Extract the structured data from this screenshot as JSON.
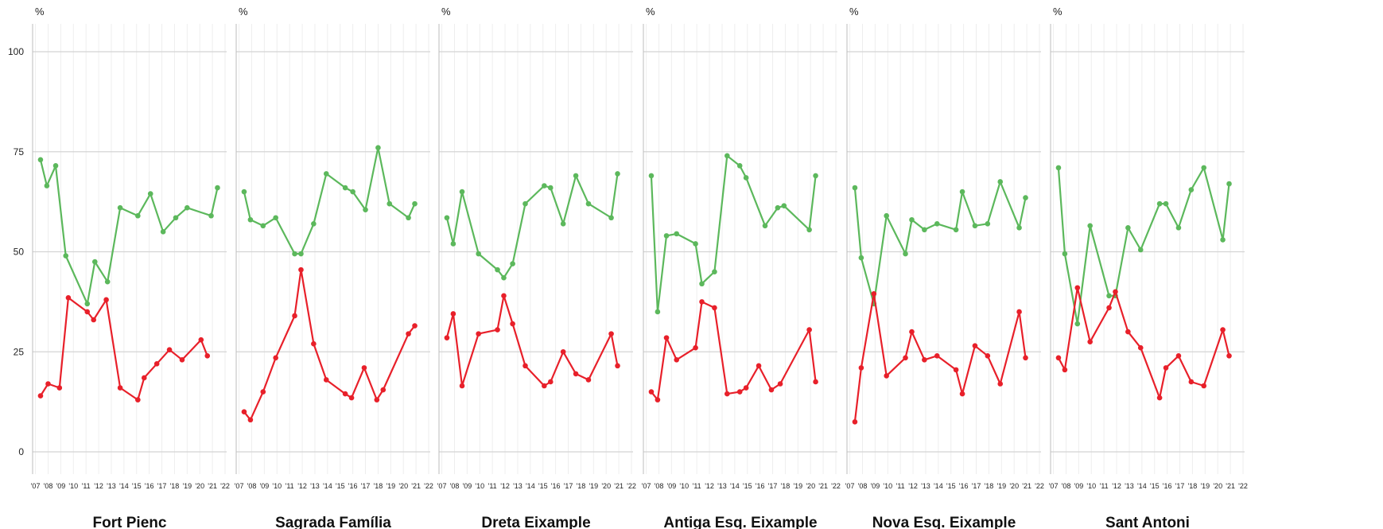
{
  "colors": {
    "green": "#5cb85c",
    "red": "#e8202a",
    "grid_major": "#d4d4d4",
    "grid_minor": "#eeeeee",
    "panel_border": "#bdbdbd"
  },
  "chart_data": {
    "type": "line",
    "y_unit_label": "%",
    "ylim": [
      -5,
      105
    ],
    "yticks": [
      0,
      25,
      50,
      75,
      100
    ],
    "x_tick_labels": [
      "'07",
      "'08",
      "'09",
      "'10",
      "'11",
      "'12",
      "'13",
      "'14",
      "'15",
      "'16",
      "'17",
      "'18",
      "'19",
      "'20",
      "'21",
      "'22"
    ],
    "x_range": [
      2006.9,
      2022.0
    ],
    "grid": true,
    "panels": [
      {
        "title": "Fort Pienc",
        "series": [
          {
            "color": "green",
            "x": [
              2007.4,
              2007.9,
              2008.6,
              2009.4,
              2011.1,
              2011.7,
              2012.7,
              2013.7,
              2015.1,
              2016.1,
              2017.1,
              2018.1,
              2019.0,
              2020.9,
              2021.4
            ],
            "y": [
              73,
              66.5,
              71.5,
              49,
              37,
              47.5,
              42.5,
              61,
              59,
              64.5,
              55,
              58.5,
              61,
              59,
              66
            ]
          },
          {
            "color": "red",
            "x": [
              2007.4,
              2008.0,
              2008.9,
              2009.6,
              2011.1,
              2011.6,
              2012.6,
              2013.7,
              2015.1,
              2015.6,
              2016.6,
              2017.6,
              2018.6,
              2020.1,
              2020.6
            ],
            "y": [
              14,
              17,
              16,
              38.5,
              35,
              33,
              38,
              16,
              13,
              18.5,
              22,
              25.5,
              23,
              28,
              24
            ]
          }
        ]
      },
      {
        "title": "Sagrada Família",
        "series": [
          {
            "color": "green",
            "x": [
              2007.4,
              2007.9,
              2008.9,
              2009.9,
              2011.4,
              2011.9,
              2012.9,
              2013.9,
              2015.4,
              2016.0,
              2017.0,
              2018.0,
              2018.9,
              2020.4,
              2020.9
            ],
            "y": [
              65,
              58,
              56.5,
              58.5,
              49.5,
              49.5,
              57,
              69.5,
              66,
              65,
              60.5,
              76,
              62,
              58.5,
              62
            ]
          },
          {
            "color": "red",
            "x": [
              2007.4,
              2007.9,
              2008.9,
              2009.9,
              2011.4,
              2011.9,
              2012.9,
              2013.9,
              2015.4,
              2015.9,
              2016.9,
              2017.9,
              2018.4,
              2020.4,
              2020.9
            ],
            "y": [
              10,
              8,
              15,
              23.5,
              34,
              45.5,
              27,
              18,
              14.5,
              13.5,
              21,
              13,
              15.5,
              29.5,
              31.5
            ]
          }
        ]
      },
      {
        "title": "Dreta Eixample",
        "series": [
          {
            "color": "green",
            "x": [
              2007.4,
              2007.9,
              2008.6,
              2009.9,
              2011.4,
              2011.9,
              2012.6,
              2013.6,
              2015.1,
              2015.6,
              2016.6,
              2017.6,
              2018.6,
              2020.4,
              2020.9
            ],
            "y": [
              58.5,
              52,
              65,
              49.5,
              45.5,
              43.5,
              47,
              62,
              66.5,
              66,
              57,
              69,
              62,
              58.5,
              69.5
            ]
          },
          {
            "color": "red",
            "x": [
              2007.4,
              2007.9,
              2008.6,
              2009.9,
              2011.4,
              2011.9,
              2012.6,
              2013.6,
              2015.1,
              2015.6,
              2016.6,
              2017.6,
              2018.6,
              2020.4,
              2020.9
            ],
            "y": [
              28.5,
              34.5,
              16.5,
              29.5,
              30.5,
              39,
              32,
              21.5,
              16.5,
              17.5,
              25,
              19.5,
              18,
              29.5,
              21.5
            ]
          }
        ]
      },
      {
        "title": "Antiga Esq. Eixample",
        "series": [
          {
            "color": "green",
            "x": [
              2007.4,
              2007.9,
              2008.6,
              2009.4,
              2010.9,
              2011.4,
              2012.4,
              2013.4,
              2014.4,
              2014.9,
              2016.4,
              2017.4,
              2017.9,
              2019.9,
              2020.4
            ],
            "y": [
              69,
              35,
              54,
              54.5,
              52,
              42,
              45,
              74,
              71.5,
              68.5,
              56.5,
              61,
              61.5,
              55.5,
              69
            ]
          },
          {
            "color": "red",
            "x": [
              2007.4,
              2007.9,
              2008.6,
              2009.4,
              2010.9,
              2011.4,
              2012.4,
              2013.4,
              2014.4,
              2014.9,
              2015.9,
              2016.9,
              2017.6,
              2019.9,
              2020.4
            ],
            "y": [
              15,
              13,
              28.5,
              23,
              26,
              37.5,
              36,
              14.5,
              15,
              16,
              21.5,
              15.5,
              17,
              30.5,
              17.5
            ]
          }
        ]
      },
      {
        "title": "Nova Esq. Eixample",
        "series": [
          {
            "color": "green",
            "x": [
              2007.4,
              2007.9,
              2008.9,
              2009.9,
              2011.4,
              2011.9,
              2012.9,
              2013.9,
              2015.4,
              2015.9,
              2016.9,
              2017.9,
              2018.9,
              2020.4,
              2020.9
            ],
            "y": [
              66,
              48.5,
              37,
              59,
              49.5,
              58,
              55.5,
              57,
              55.5,
              65,
              56.5,
              57,
              67.5,
              56,
              63.5
            ]
          },
          {
            "color": "red",
            "x": [
              2007.4,
              2007.9,
              2008.9,
              2009.9,
              2011.4,
              2011.9,
              2012.9,
              2013.9,
              2015.4,
              2015.9,
              2016.9,
              2017.9,
              2018.9,
              2020.4,
              2020.9
            ],
            "y": [
              7.5,
              21,
              39.5,
              19,
              23.5,
              30,
              23,
              24,
              20.5,
              14.5,
              26.5,
              24,
              17,
              35,
              23.5
            ]
          }
        ]
      },
      {
        "title": "Sant Antoni",
        "series": [
          {
            "color": "green",
            "x": [
              2007.4,
              2007.9,
              2008.9,
              2009.9,
              2011.4,
              2011.9,
              2012.9,
              2013.9,
              2015.4,
              2015.9,
              2016.9,
              2017.9,
              2018.9,
              2020.4,
              2020.9
            ],
            "y": [
              71,
              49.5,
              32,
              56.5,
              39,
              39,
              56,
              50.5,
              62,
              62,
              56,
              65.5,
              71,
              53,
              67
            ]
          },
          {
            "color": "red",
            "x": [
              2007.4,
              2007.9,
              2008.9,
              2009.9,
              2011.4,
              2011.9,
              2012.9,
              2013.9,
              2015.4,
              2015.9,
              2016.9,
              2017.9,
              2018.9,
              2020.4,
              2020.9
            ],
            "y": [
              23.5,
              20.5,
              41,
              27.5,
              36,
              40,
              30,
              26,
              13.5,
              21,
              24,
              17.5,
              16.5,
              30.5,
              24
            ]
          }
        ]
      }
    ]
  }
}
